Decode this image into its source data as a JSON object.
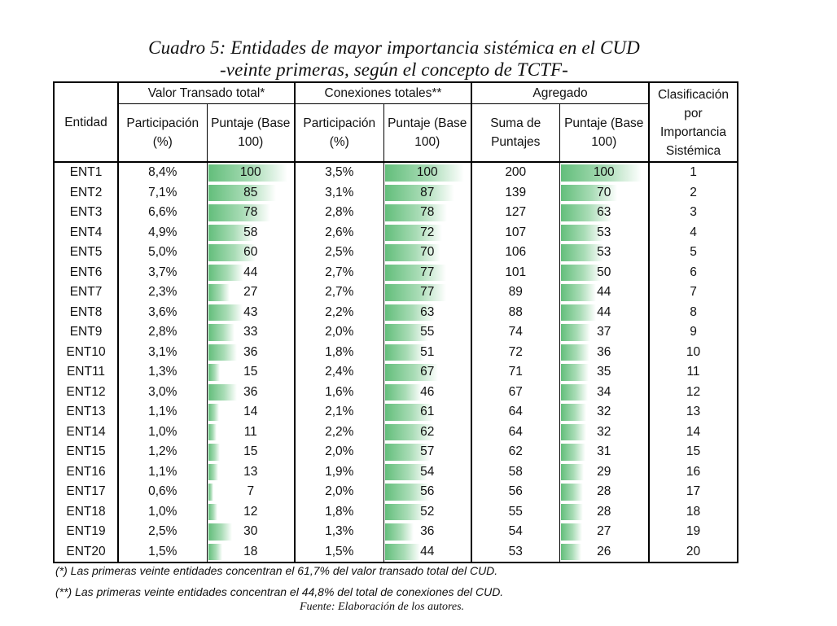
{
  "title_line1": "Cuadro 5: Entidades de mayor importancia sistémica  en el CUD",
  "title_line2": "-veinte primeras, según el concepto de TCTF-",
  "headers": {
    "entidad": "Entidad",
    "group_valor": "Valor Transado total*",
    "group_conexiones": "Conexiones totales**",
    "group_agregado": "Agregado",
    "clasificacion": "Clasificación por Importancia Sistémica",
    "part_pct": "Participación (%)",
    "puntaje_base": "Puntaje (Base 100)",
    "suma_puntajes": "Suma de Puntajes"
  },
  "bar_color": "#63be7b",
  "rows": [
    {
      "entidad": "ENT1",
      "vt_part": "8,4%",
      "vt_punt": 100,
      "cx_part": "3,5%",
      "cx_punt": 100,
      "suma": 200,
      "ag_punt": 100,
      "rank": 1
    },
    {
      "entidad": "ENT2",
      "vt_part": "7,1%",
      "vt_punt": 85,
      "cx_part": "3,1%",
      "cx_punt": 87,
      "suma": 139,
      "ag_punt": 70,
      "rank": 2
    },
    {
      "entidad": "ENT3",
      "vt_part": "6,6%",
      "vt_punt": 78,
      "cx_part": "2,8%",
      "cx_punt": 78,
      "suma": 127,
      "ag_punt": 63,
      "rank": 3
    },
    {
      "entidad": "ENT4",
      "vt_part": "4,9%",
      "vt_punt": 58,
      "cx_part": "2,6%",
      "cx_punt": 72,
      "suma": 107,
      "ag_punt": 53,
      "rank": 4
    },
    {
      "entidad": "ENT5",
      "vt_part": "5,0%",
      "vt_punt": 60,
      "cx_part": "2,5%",
      "cx_punt": 70,
      "suma": 106,
      "ag_punt": 53,
      "rank": 5
    },
    {
      "entidad": "ENT6",
      "vt_part": "3,7%",
      "vt_punt": 44,
      "cx_part": "2,7%",
      "cx_punt": 77,
      "suma": 101,
      "ag_punt": 50,
      "rank": 6
    },
    {
      "entidad": "ENT7",
      "vt_part": "2,3%",
      "vt_punt": 27,
      "cx_part": "2,7%",
      "cx_punt": 77,
      "suma": 89,
      "ag_punt": 44,
      "rank": 7
    },
    {
      "entidad": "ENT8",
      "vt_part": "3,6%",
      "vt_punt": 43,
      "cx_part": "2,2%",
      "cx_punt": 63,
      "suma": 88,
      "ag_punt": 44,
      "rank": 8
    },
    {
      "entidad": "ENT9",
      "vt_part": "2,8%",
      "vt_punt": 33,
      "cx_part": "2,0%",
      "cx_punt": 55,
      "suma": 74,
      "ag_punt": 37,
      "rank": 9
    },
    {
      "entidad": "ENT10",
      "vt_part": "3,1%",
      "vt_punt": 36,
      "cx_part": "1,8%",
      "cx_punt": 51,
      "suma": 72,
      "ag_punt": 36,
      "rank": 10
    },
    {
      "entidad": "ENT11",
      "vt_part": "1,3%",
      "vt_punt": 15,
      "cx_part": "2,4%",
      "cx_punt": 67,
      "suma": 71,
      "ag_punt": 35,
      "rank": 11
    },
    {
      "entidad": "ENT12",
      "vt_part": "3,0%",
      "vt_punt": 36,
      "cx_part": "1,6%",
      "cx_punt": 46,
      "suma": 67,
      "ag_punt": 34,
      "rank": 12
    },
    {
      "entidad": "ENT13",
      "vt_part": "1,1%",
      "vt_punt": 14,
      "cx_part": "2,1%",
      "cx_punt": 61,
      "suma": 64,
      "ag_punt": 32,
      "rank": 13
    },
    {
      "entidad": "ENT14",
      "vt_part": "1,0%",
      "vt_punt": 11,
      "cx_part": "2,2%",
      "cx_punt": 62,
      "suma": 64,
      "ag_punt": 32,
      "rank": 14
    },
    {
      "entidad": "ENT15",
      "vt_part": "1,2%",
      "vt_punt": 15,
      "cx_part": "2,0%",
      "cx_punt": 57,
      "suma": 62,
      "ag_punt": 31,
      "rank": 15
    },
    {
      "entidad": "ENT16",
      "vt_part": "1,1%",
      "vt_punt": 13,
      "cx_part": "1,9%",
      "cx_punt": 54,
      "suma": 58,
      "ag_punt": 29,
      "rank": 16
    },
    {
      "entidad": "ENT17",
      "vt_part": "0,6%",
      "vt_punt": 7,
      "cx_part": "2,0%",
      "cx_punt": 56,
      "suma": 56,
      "ag_punt": 28,
      "rank": 17
    },
    {
      "entidad": "ENT18",
      "vt_part": "1,0%",
      "vt_punt": 12,
      "cx_part": "1,8%",
      "cx_punt": 52,
      "suma": 55,
      "ag_punt": 28,
      "rank": 18
    },
    {
      "entidad": "ENT19",
      "vt_part": "2,5%",
      "vt_punt": 30,
      "cx_part": "1,3%",
      "cx_punt": 36,
      "suma": 54,
      "ag_punt": 27,
      "rank": 19
    },
    {
      "entidad": "ENT20",
      "vt_part": "1,5%",
      "vt_punt": 18,
      "cx_part": "1,5%",
      "cx_punt": 44,
      "suma": 53,
      "ag_punt": 26,
      "rank": 20
    }
  ],
  "notes": {
    "note1": "(*) Las primeras veinte entidades concentran el 61,7% del valor transado total del CUD.",
    "note2": "(**) Las primeras veinte entidades concentran el 44,8% del total de conexiones del CUD.",
    "source": "Fuente: Elaboración de los autores."
  }
}
